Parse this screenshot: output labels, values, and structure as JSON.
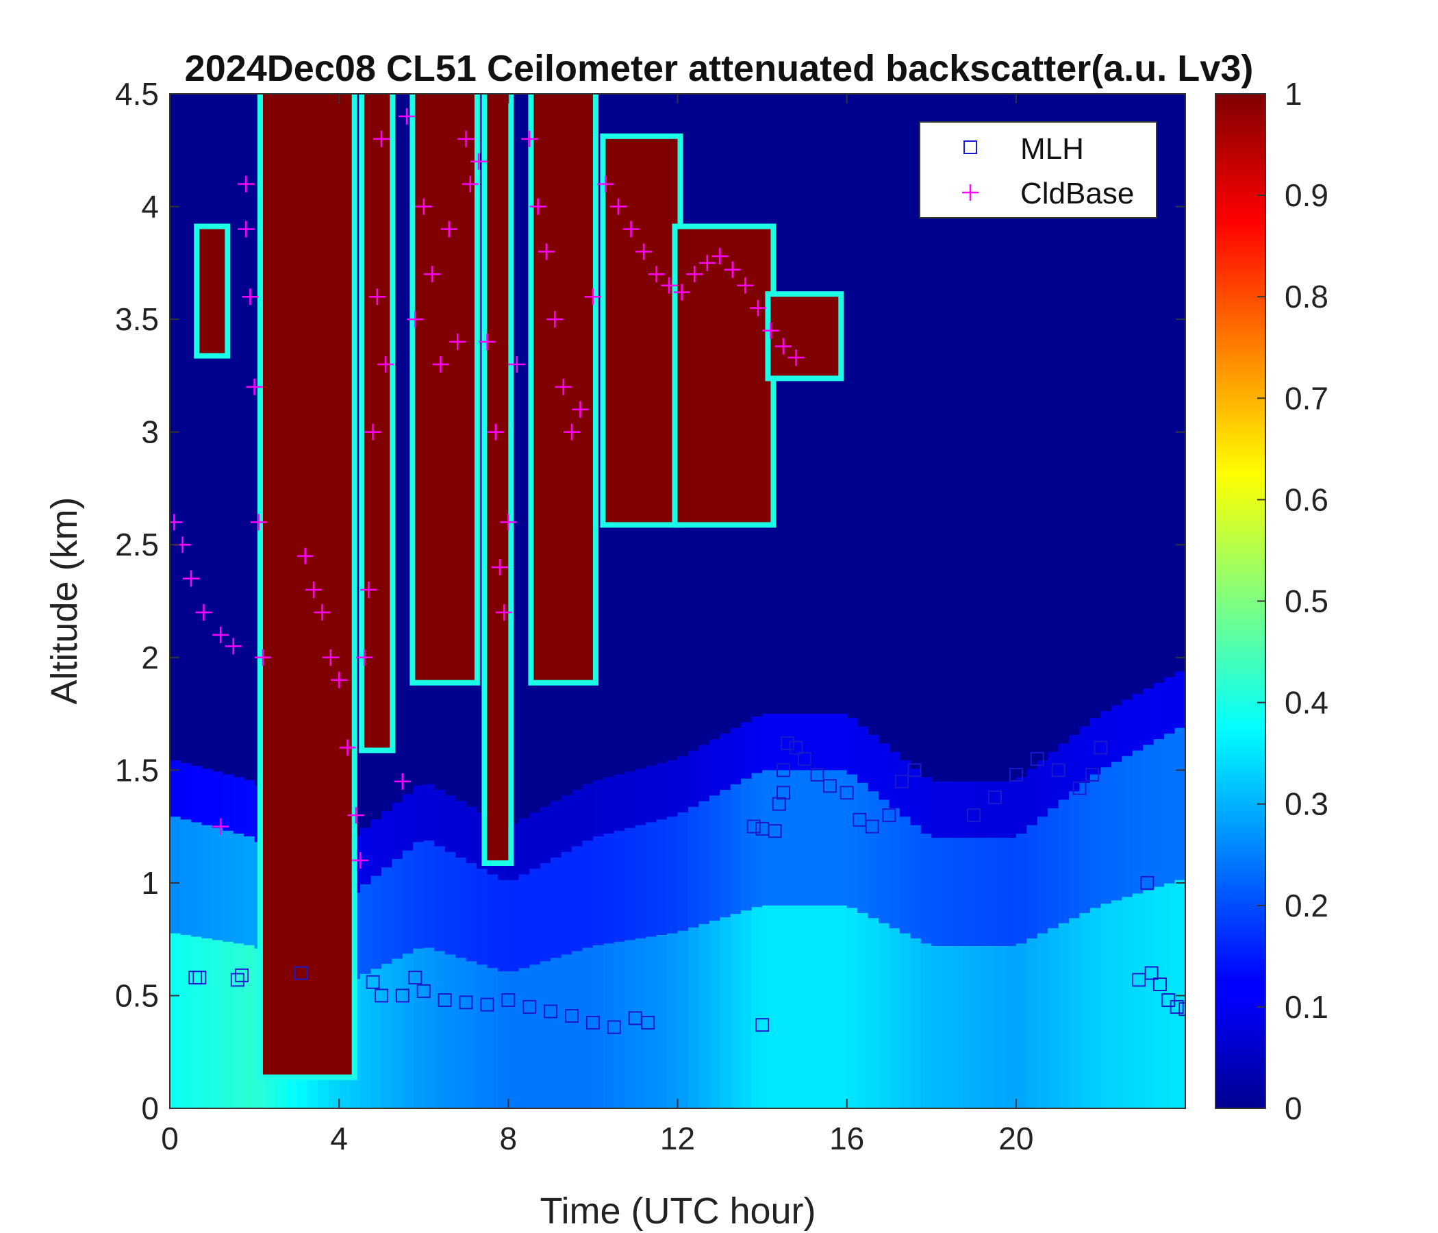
{
  "chart_data": {
    "type": "heatmap",
    "title": "2024Dec08 CL51 Ceilometer attenuated backscatter(a.u. Lv3)",
    "xlabel": "Time (UTC hour)",
    "ylabel": "Altitude (km)",
    "xlim": [
      0,
      24
    ],
    "ylim": [
      0,
      4.5
    ],
    "xticks": [
      "0",
      "4",
      "8",
      "12",
      "16",
      "20"
    ],
    "xtick_values": [
      0,
      4,
      8,
      12,
      16,
      20
    ],
    "yticks": [
      "0",
      "0.5",
      "1",
      "1.5",
      "2",
      "2.5",
      "3",
      "3.5",
      "4",
      "4.5"
    ],
    "ytick_values": [
      0,
      0.5,
      1,
      1.5,
      2,
      2.5,
      3,
      3.5,
      4,
      4.5
    ],
    "colorbar": {
      "colormap": "jet",
      "range": [
        0,
        1
      ],
      "ticks": [
        "0",
        "0.1",
        "0.2",
        "0.3",
        "0.4",
        "0.5",
        "0.6",
        "0.7",
        "0.8",
        "0.9",
        "1"
      ],
      "tick_values": [
        0,
        0.1,
        0.2,
        0.3,
        0.4,
        0.5,
        0.6,
        0.7,
        0.8,
        0.9,
        1
      ]
    },
    "legend": {
      "placement": "top-right",
      "entries": [
        {
          "label": "MLH",
          "marker": "square",
          "color": "#1a1acc"
        },
        {
          "label": "CldBase",
          "marker": "plus",
          "color": "#ff00ff"
        }
      ]
    },
    "heatmap": {
      "background_value": 0.02,
      "near_surface_layer": [
        {
          "t": 0,
          "top": 1.3,
          "v": 0.35
        },
        {
          "t": 2,
          "top": 1.2,
          "v": 0.38
        },
        {
          "t": 4,
          "top": 0.9,
          "v": 0.3
        },
        {
          "t": 6,
          "top": 1.2,
          "v": 0.25
        },
        {
          "t": 8,
          "top": 1.0,
          "v": 0.22
        },
        {
          "t": 10,
          "top": 1.2,
          "v": 0.22
        },
        {
          "t": 12,
          "top": 1.3,
          "v": 0.25
        },
        {
          "t": 14,
          "top": 1.5,
          "v": 0.32
        },
        {
          "t": 16,
          "top": 1.5,
          "v": 0.32
        },
        {
          "t": 18,
          "top": 1.2,
          "v": 0.28
        },
        {
          "t": 20,
          "top": 1.2,
          "v": 0.26
        },
        {
          "t": 22,
          "top": 1.5,
          "v": 0.3
        },
        {
          "t": 24,
          "top": 1.7,
          "v": 0.32
        }
      ],
      "cloud_regions": [
        {
          "t_start": 0.7,
          "t_end": 1.3,
          "bottom": 3.35,
          "top": 3.9,
          "v": 1.0
        },
        {
          "t_start": 2.2,
          "t_end": 4.3,
          "bottom": 0.15,
          "top": 4.5,
          "v": 1.0
        },
        {
          "t_start": 4.6,
          "t_end": 5.2,
          "bottom": 1.6,
          "top": 4.5,
          "v": 1.0
        },
        {
          "t_start": 5.8,
          "t_end": 7.2,
          "bottom": 1.9,
          "top": 4.5,
          "v": 1.0
        },
        {
          "t_start": 7.5,
          "t_end": 8.0,
          "bottom": 1.1,
          "top": 4.5,
          "v": 1.0
        },
        {
          "t_start": 8.6,
          "t_end": 10.0,
          "bottom": 1.9,
          "top": 4.5,
          "v": 1.0
        },
        {
          "t_start": 10.3,
          "t_end": 12.0,
          "bottom": 2.6,
          "top": 4.3,
          "v": 1.0
        },
        {
          "t_start": 12.0,
          "t_end": 14.2,
          "bottom": 2.6,
          "top": 3.9,
          "v": 1.0
        },
        {
          "t_start": 14.2,
          "t_end": 15.8,
          "bottom": 3.25,
          "top": 3.6,
          "v": 1.0
        }
      ]
    },
    "series": [
      {
        "name": "MLH",
        "marker": "square",
        "points": [
          [
            0.6,
            0.58
          ],
          [
            0.7,
            0.58
          ],
          [
            1.6,
            0.57
          ],
          [
            1.7,
            0.59
          ],
          [
            3.1,
            0.6
          ],
          [
            4.8,
            0.56
          ],
          [
            5.0,
            0.5
          ],
          [
            5.5,
            0.5
          ],
          [
            5.8,
            0.58
          ],
          [
            6.0,
            0.52
          ],
          [
            6.5,
            0.48
          ],
          [
            7.0,
            0.47
          ],
          [
            7.5,
            0.46
          ],
          [
            8.0,
            0.48
          ],
          [
            8.5,
            0.45
          ],
          [
            9.0,
            0.43
          ],
          [
            9.5,
            0.41
          ],
          [
            10.0,
            0.38
          ],
          [
            10.5,
            0.36
          ],
          [
            11.0,
            0.4
          ],
          [
            11.3,
            0.38
          ],
          [
            14.0,
            0.37
          ],
          [
            13.8,
            1.25
          ],
          [
            14.0,
            1.24
          ],
          [
            14.3,
            1.23
          ],
          [
            14.4,
            1.35
          ],
          [
            14.5,
            1.4
          ],
          [
            14.5,
            1.5
          ],
          [
            14.6,
            1.62
          ],
          [
            14.8,
            1.6
          ],
          [
            15.0,
            1.55
          ],
          [
            15.3,
            1.48
          ],
          [
            15.6,
            1.43
          ],
          [
            16.0,
            1.4
          ],
          [
            16.3,
            1.28
          ],
          [
            16.6,
            1.25
          ],
          [
            17.0,
            1.3
          ],
          [
            17.3,
            1.45
          ],
          [
            17.6,
            1.5
          ],
          [
            19.0,
            1.3
          ],
          [
            19.5,
            1.38
          ],
          [
            20.0,
            1.48
          ],
          [
            20.5,
            1.55
          ],
          [
            21.0,
            1.5
          ],
          [
            21.5,
            1.42
          ],
          [
            21.8,
            1.48
          ],
          [
            22.0,
            1.6
          ],
          [
            23.1,
            1.0
          ],
          [
            22.9,
            0.57
          ],
          [
            23.2,
            0.6
          ],
          [
            23.4,
            0.55
          ],
          [
            23.6,
            0.48
          ],
          [
            23.8,
            0.45
          ],
          [
            24.0,
            0.44
          ]
        ]
      },
      {
        "name": "CldBase",
        "marker": "plus",
        "points": [
          [
            0.1,
            2.6
          ],
          [
            0.3,
            2.5
          ],
          [
            0.5,
            2.35
          ],
          [
            0.8,
            2.2
          ],
          [
            1.2,
            2.1
          ],
          [
            1.5,
            2.05
          ],
          [
            1.2,
            1.25
          ],
          [
            1.8,
            4.1
          ],
          [
            1.8,
            3.9
          ],
          [
            1.9,
            3.6
          ],
          [
            2.0,
            3.2
          ],
          [
            2.1,
            2.6
          ],
          [
            2.2,
            2.0
          ],
          [
            3.2,
            2.45
          ],
          [
            3.4,
            2.3
          ],
          [
            3.6,
            2.2
          ],
          [
            3.8,
            2.0
          ],
          [
            4.0,
            1.9
          ],
          [
            4.2,
            1.6
          ],
          [
            4.4,
            1.3
          ],
          [
            4.5,
            1.1
          ],
          [
            4.6,
            2.0
          ],
          [
            4.7,
            2.3
          ],
          [
            4.8,
            3.0
          ],
          [
            4.9,
            3.6
          ],
          [
            5.0,
            4.3
          ],
          [
            5.1,
            3.3
          ],
          [
            5.5,
            1.45
          ],
          [
            5.6,
            4.4
          ],
          [
            5.8,
            3.5
          ],
          [
            6.0,
            4.0
          ],
          [
            6.2,
            3.7
          ],
          [
            6.4,
            3.3
          ],
          [
            6.6,
            3.9
          ],
          [
            6.8,
            3.4
          ],
          [
            7.0,
            4.3
          ],
          [
            7.1,
            4.1
          ],
          [
            7.3,
            4.2
          ],
          [
            7.5,
            3.4
          ],
          [
            7.7,
            3.0
          ],
          [
            7.8,
            2.4
          ],
          [
            7.9,
            2.2
          ],
          [
            8.0,
            2.6
          ],
          [
            8.2,
            3.3
          ],
          [
            8.5,
            4.3
          ],
          [
            8.7,
            4.0
          ],
          [
            8.9,
            3.8
          ],
          [
            9.1,
            3.5
          ],
          [
            9.3,
            3.2
          ],
          [
            9.5,
            3.0
          ],
          [
            9.7,
            3.1
          ],
          [
            10.0,
            3.6
          ],
          [
            10.3,
            4.1
          ],
          [
            10.6,
            4.0
          ],
          [
            10.9,
            3.9
          ],
          [
            11.2,
            3.8
          ],
          [
            11.5,
            3.7
          ],
          [
            11.8,
            3.65
          ],
          [
            12.1,
            3.62
          ],
          [
            12.4,
            3.7
          ],
          [
            12.7,
            3.75
          ],
          [
            13.0,
            3.78
          ],
          [
            13.3,
            3.72
          ],
          [
            13.6,
            3.65
          ],
          [
            13.9,
            3.55
          ],
          [
            14.2,
            3.45
          ],
          [
            14.5,
            3.38
          ],
          [
            14.8,
            3.33
          ]
        ]
      }
    ]
  }
}
